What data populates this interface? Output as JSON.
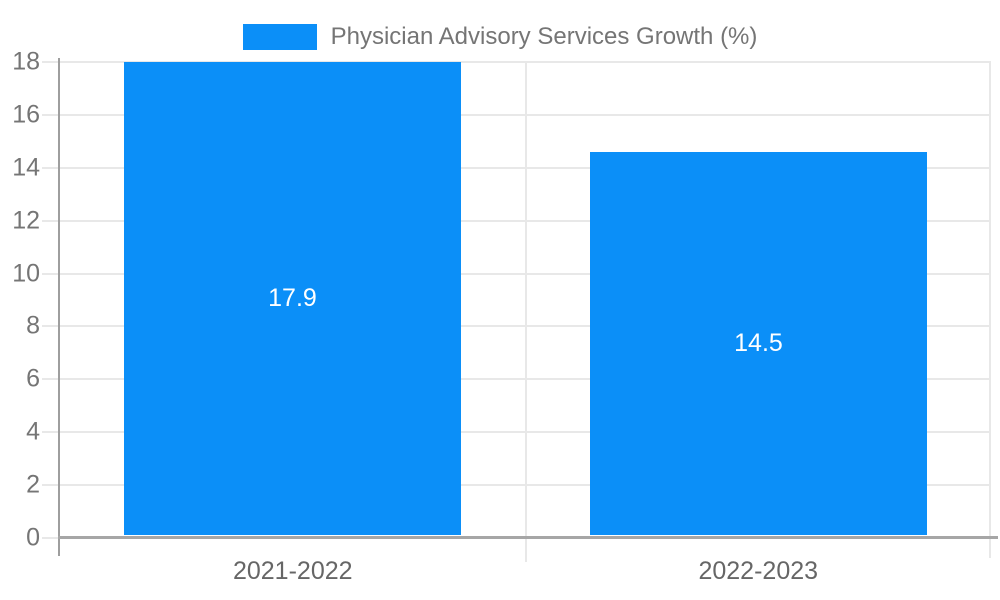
{
  "chart_data": {
    "type": "bar",
    "title": "",
    "legend": {
      "position": "top",
      "entries": [
        "Physician Advisory Services Growth (%)"
      ]
    },
    "categories": [
      "2021-2022",
      "2022-2023"
    ],
    "series": [
      {
        "name": "Physician Advisory Services Growth (%)",
        "values": [
          17.9,
          14.5
        ]
      }
    ],
    "value_labels": [
      "17.9",
      "14.5"
    ],
    "ylabel": "",
    "xlabel": "",
    "ylim": [
      0,
      18
    ],
    "yticks": [
      0,
      2,
      4,
      6,
      8,
      10,
      12,
      14,
      16,
      18
    ],
    "grid": true,
    "colors": {
      "bar": "#0b8ff8",
      "grid": "#e8e8e8",
      "axis": "#a6a6a6",
      "axis_line": "#9e9e9e",
      "tick_label": "#757575",
      "category_label": "#666666",
      "value_label": "#ffffff",
      "legend_text": "#757575"
    }
  }
}
